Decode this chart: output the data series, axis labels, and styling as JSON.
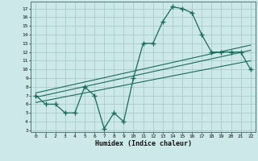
{
  "xlabel": "Humidex (Indice chaleur)",
  "bg_color": "#cce8e8",
  "grid_color": "#aacccc",
  "line_color": "#1a6b5a",
  "x_ticks": [
    0,
    1,
    2,
    3,
    4,
    5,
    6,
    7,
    8,
    9,
    10,
    11,
    12,
    13,
    14,
    15,
    16,
    17,
    18,
    19,
    20,
    21,
    22
  ],
  "y_ticks": [
    3,
    4,
    5,
    6,
    7,
    8,
    9,
    10,
    11,
    12,
    13,
    14,
    15,
    16,
    17
  ],
  "ylim": [
    2.8,
    17.8
  ],
  "xlim": [
    -0.5,
    22.5
  ],
  "curve_x": [
    0,
    1,
    2,
    3,
    4,
    5,
    6,
    7,
    8,
    9,
    10,
    11,
    12,
    13,
    14,
    15,
    16,
    17,
    18,
    19,
    20,
    21,
    22
  ],
  "curve_y": [
    7,
    6,
    6,
    5,
    5,
    8,
    7,
    3.2,
    5,
    4,
    9,
    13,
    13,
    15.5,
    17.2,
    17,
    16.5,
    14,
    12,
    12,
    12,
    12,
    10
  ],
  "line1_x": [
    0,
    22
  ],
  "line1_y": [
    6.2,
    11.0
  ],
  "line2_x": [
    0,
    22
  ],
  "line2_y": [
    6.8,
    12.2
  ],
  "line3_x": [
    0,
    22
  ],
  "line3_y": [
    7.3,
    12.8
  ]
}
